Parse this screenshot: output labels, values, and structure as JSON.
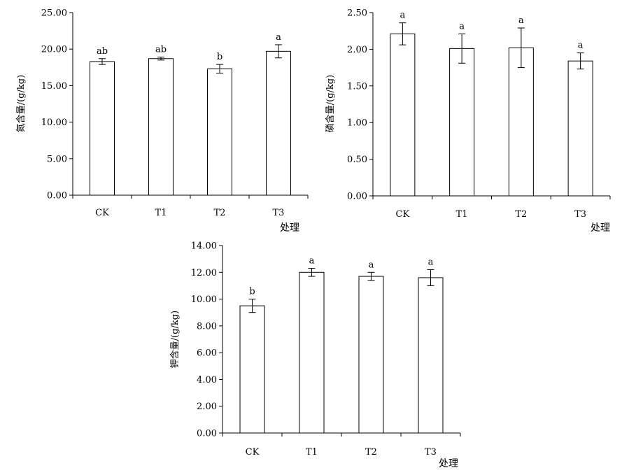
{
  "chart_data": [
    {
      "type": "bar",
      "categories": [
        "CK",
        "T1",
        "T2",
        "T3"
      ],
      "values": [
        18.3,
        18.7,
        17.3,
        19.7
      ],
      "errors": [
        0.4,
        0.2,
        0.6,
        0.9
      ],
      "significance": [
        "ab",
        "ab",
        "b",
        "a"
      ],
      "ylabel": "氮含量/(g/kg)",
      "xlabel": "处理",
      "ylim": [
        0,
        25
      ],
      "yticks": [
        "0.00",
        "5.00",
        "10.00",
        "15.00",
        "20.00",
        "25.00"
      ],
      "yticks_values": [
        0,
        5,
        10,
        15,
        20,
        25
      ],
      "grid": false
    },
    {
      "type": "bar",
      "categories": [
        "CK",
        "T1",
        "T2",
        "T3"
      ],
      "values": [
        2.21,
        2.01,
        2.02,
        1.84
      ],
      "errors": [
        0.15,
        0.2,
        0.27,
        0.11
      ],
      "significance": [
        "a",
        "a",
        "a",
        "a"
      ],
      "ylabel": "磷含量/(g/kg)",
      "xlabel": "处理",
      "ylim": [
        0,
        2.5
      ],
      "yticks": [
        "0.00",
        "0.50",
        "1.00",
        "1.50",
        "2.00",
        "2.50"
      ],
      "yticks_values": [
        0,
        0.5,
        1,
        1.5,
        2,
        2.5
      ],
      "grid": false
    },
    {
      "type": "bar",
      "categories": [
        "CK",
        "T1",
        "T2",
        "T3"
      ],
      "values": [
        9.5,
        12.0,
        11.7,
        11.6
      ],
      "errors": [
        0.5,
        0.3,
        0.3,
        0.6
      ],
      "significance": [
        "b",
        "a",
        "a",
        "a"
      ],
      "ylabel": "钾含量/(g/kg)",
      "xlabel": "处理",
      "ylim": [
        0,
        14
      ],
      "yticks": [
        "0.00",
        "2.00",
        "4.00",
        "6.00",
        "8.00",
        "10.00",
        "12.00",
        "14.00"
      ],
      "yticks_values": [
        0,
        2,
        4,
        6,
        8,
        10,
        12,
        14
      ],
      "grid": false
    }
  ]
}
